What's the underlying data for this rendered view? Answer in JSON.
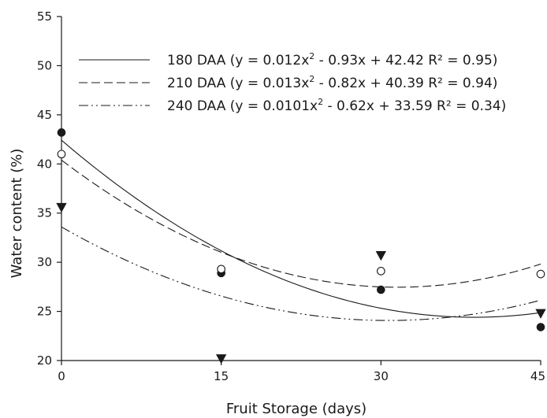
{
  "chart_data": {
    "type": "scatter",
    "xlabel": "Fruit Storage (days)",
    "ylabel": "Water content (%)",
    "xlim": [
      0,
      45
    ],
    "ylim": [
      20,
      55
    ],
    "xticks": [
      0,
      15,
      30,
      45
    ],
    "yticks": [
      20,
      25,
      30,
      35,
      40,
      45,
      50,
      55
    ],
    "grid": false,
    "legend_position": "top-right",
    "series": [
      {
        "name": "180 DAA",
        "legend_prefix": "180 DAA (y = 0.012x",
        "legend_suffix": " - 0.93x + 42.42  R² = 0.95)",
        "marker": "filled-circle",
        "line_style": "solid",
        "coefficients": [
          0.012,
          -0.93,
          42.42
        ],
        "x": [
          0,
          15,
          30,
          45
        ],
        "y": [
          43.2,
          28.9,
          27.2,
          23.4
        ]
      },
      {
        "name": "210 DAA",
        "legend_prefix": "210 DAA (y = 0.013x",
        "legend_suffix": " - 0.82x + 40.39  R² = 0.94)",
        "marker": "open-circle",
        "line_style": "dashed",
        "coefficients": [
          0.013,
          -0.82,
          40.39
        ],
        "x": [
          0,
          15,
          30,
          45
        ],
        "y": [
          41.0,
          29.3,
          29.1,
          28.8
        ]
      },
      {
        "name": "240 DAA",
        "legend_prefix": "240 DAA (y = 0.0101x",
        "legend_suffix": " - 0.62x + 33.59  R² = 0.34)",
        "marker": "filled-triangle-down",
        "line_style": "dash-dot-dot",
        "coefficients": [
          0.0101,
          -0.62,
          33.59
        ],
        "x": [
          0,
          15,
          30,
          45
        ],
        "y": [
          35.6,
          20.2,
          30.7,
          24.8
        ]
      }
    ]
  },
  "legend_superscript": "2",
  "colors": {
    "ink": "#1a1a1a",
    "background": "#ffffff"
  }
}
